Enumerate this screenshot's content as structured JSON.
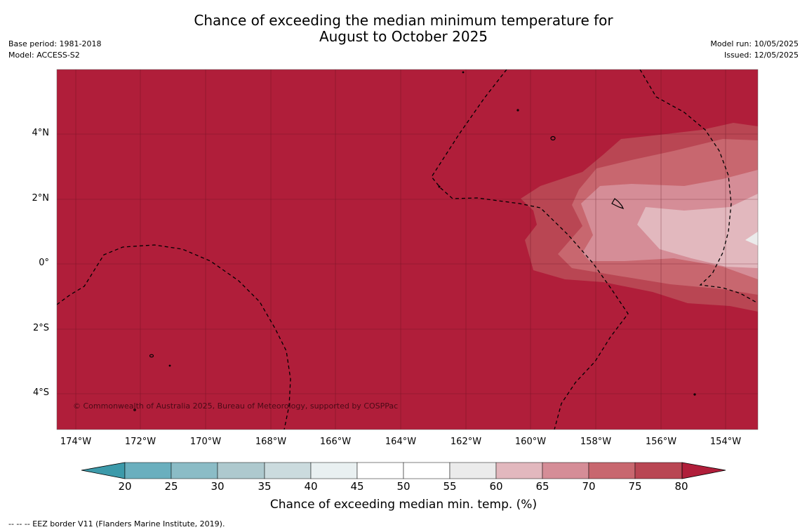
{
  "title": {
    "line1": "Chance of exceeding the median minimum temperature for",
    "line2": "August to October 2025"
  },
  "meta_left": {
    "base_period": "Base period: 1981-2018",
    "model": "Model: ACCESS-S2"
  },
  "meta_right": {
    "model_run": "Model run: 10/05/2025",
    "issued": "Issued: 12/05/2025"
  },
  "map": {
    "lat_labels": [
      "4°N",
      "2°N",
      "0°",
      "2°S",
      "4°S"
    ],
    "lon_labels": [
      "174°W",
      "172°W",
      "170°W",
      "168°W",
      "166°W",
      "164°W",
      "162°W",
      "160°W",
      "158°W",
      "156°W",
      "154°W"
    ],
    "copyright": "© Commonwealth of Australia 2025, Bureau of Meteorology, supported by COSPPac",
    "base_color": "#b01e3a"
  },
  "colorbar": {
    "tick_labels": [
      "20",
      "25",
      "30",
      "35",
      "40",
      "45",
      "50",
      "55",
      "60",
      "65",
      "70",
      "75",
      "80"
    ],
    "colors": [
      "#3c9aaa",
      "#6aafbe",
      "#8bbcc6",
      "#aec9ce",
      "#cbdbde",
      "#e9f0f1",
      "#ffffff",
      "#ffffff",
      "#ebebeb",
      "#e2b8be",
      "#d58d97",
      "#c8676f",
      "#b94653",
      "#b01e3a"
    ],
    "title": "Chance of exceeding median min. temp. (%)"
  },
  "footnote": "-- -- -- EEZ border V11 (Flanders Marine Institute, 2019)."
}
